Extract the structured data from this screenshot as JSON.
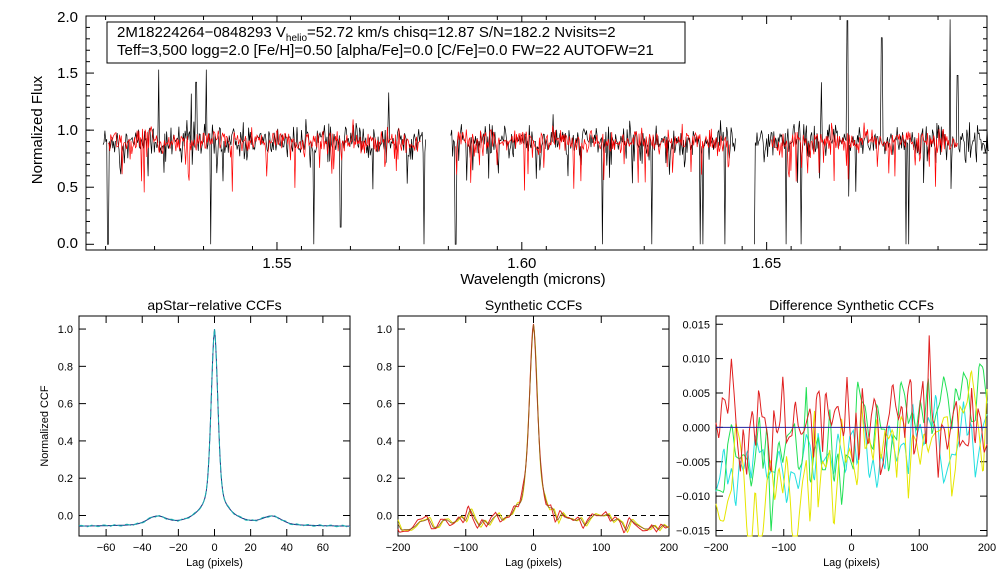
{
  "chart_data": [
    {
      "type": "line",
      "panel": "spectrum",
      "title": "",
      "xlabel": "Wavelength (microns)",
      "ylabel": "Normalized Flux",
      "xlim": [
        1.511,
        1.695
      ],
      "ylim": [
        -0.05,
        2.0
      ],
      "xticks": [
        1.55,
        1.6,
        1.65
      ],
      "xtick_labels": [
        "1.55",
        "1.60",
        "1.65"
      ],
      "yticks": [
        0.0,
        0.5,
        1.0,
        1.5,
        2.0
      ],
      "ytick_labels": [
        "0.0",
        "0.5",
        "1.0",
        "1.5",
        "2.0"
      ],
      "chip_ranges": [
        [
          1.5145,
          1.5805
        ],
        [
          1.5855,
          1.6438
        ],
        [
          1.6475,
          1.6955
        ]
      ],
      "model_ranges": [
        [
          1.5155,
          1.5795
        ],
        [
          1.5865,
          1.6425
        ],
        [
          1.651,
          1.689
        ]
      ],
      "continuum": 0.9,
      "spikes": [
        [
          1.5355,
          1.53
        ],
        [
          1.5258,
          1.53
        ],
        [
          1.5335,
          1.42
        ],
        [
          1.5325,
          1.32
        ],
        [
          1.6665,
          1.96
        ],
        [
          1.6735,
          1.81
        ],
        [
          1.6875,
          1.97
        ],
        [
          1.689,
          1.48
        ],
        [
          1.6612,
          1.42
        ],
        [
          1.5728,
          1.33
        ]
      ],
      "dips": [
        [
          1.5155,
          0.0
        ],
        [
          1.5365,
          0.0
        ],
        [
          1.5575,
          0.0
        ],
        [
          1.563,
          0.15
        ],
        [
          1.58,
          0.0
        ],
        [
          1.5865,
          0.0
        ],
        [
          1.6165,
          0.0
        ],
        [
          1.6265,
          0.0
        ],
        [
          1.6365,
          0.0
        ],
        [
          1.637,
          0.0
        ],
        [
          1.6415,
          0.0
        ],
        [
          1.6475,
          0.0
        ],
        [
          1.654,
          0.0
        ],
        [
          1.657,
          0.0
        ],
        [
          1.6785,
          0.0
        ],
        [
          1.679,
          0.0
        ]
      ],
      "series": [
        {
          "name": "observed spectrum",
          "color": "#000000"
        },
        {
          "name": "best-fit model",
          "color": "#ff0000"
        }
      ]
    },
    {
      "type": "line",
      "panel": "apstar-relative-ccf",
      "title": "apStar−relative CCFs",
      "xlabel": "Lag (pixels)",
      "ylabel": "Normalized CCF",
      "xlim": [
        -75,
        75
      ],
      "ylim": [
        -0.11,
        1.07
      ],
      "xticks": [
        -60,
        -40,
        -20,
        0,
        20,
        40,
        60
      ],
      "xtick_labels": [
        "−60",
        "−40",
        "−20",
        "0",
        "20",
        "40",
        "60"
      ],
      "yticks": [
        0.0,
        0.2,
        0.4,
        0.6,
        0.8,
        1.0
      ],
      "ytick_labels": [
        "0.0",
        "0.2",
        "0.4",
        "0.6",
        "0.8",
        "1.0"
      ],
      "series": [
        {
          "name": "visit 1",
          "color": "#1d2a80"
        },
        {
          "name": "visit 2",
          "color": "#1bb0b0"
        }
      ]
    },
    {
      "type": "line",
      "panel": "synthetic-ccf",
      "title": "Synthetic CCFs",
      "xlabel": "Lag (pixels)",
      "ylabel": "",
      "xlim": [
        -200,
        200
      ],
      "ylim": [
        -0.11,
        1.07
      ],
      "xticks": [
        -200,
        -100,
        0,
        100,
        200
      ],
      "xtick_labels": [
        "−200",
        "−100",
        "0",
        "100",
        "200"
      ],
      "yticks": [
        0.0,
        0.2,
        0.4,
        0.6,
        0.8,
        1.0
      ],
      "ytick_labels": [
        "0.0",
        "0.2",
        "0.4",
        "0.6",
        "0.8",
        "1.0"
      ],
      "series": [
        {
          "name": "combined",
          "color": "#000000"
        },
        {
          "name": "visit 1",
          "color": "#e0e000"
        },
        {
          "name": "visit 2",
          "color": "#e02020"
        },
        {
          "name": "zero line",
          "color": "#000000",
          "dashed": true
        }
      ]
    },
    {
      "type": "line",
      "panel": "difference-synthetic-ccf",
      "title": "Difference Synthetic CCFs",
      "xlabel": "Lag (pixels)",
      "ylabel": "",
      "xlim": [
        -200,
        200
      ],
      "ylim": [
        -0.0158,
        0.0162
      ],
      "xticks": [
        -200,
        -100,
        0,
        100,
        200
      ],
      "xtick_labels": [
        "−200",
        "−100",
        "0",
        "100",
        "200"
      ],
      "yticks": [
        -0.015,
        -0.01,
        -0.005,
        0.0,
        0.005,
        0.01,
        0.015
      ],
      "ytick_labels": [
        "−0.015",
        "−0.010",
        "−0.005",
        "0.000",
        "0.005",
        "0.010",
        "0.015"
      ],
      "series": [
        {
          "name": "cyan",
          "color": "#22e0e0"
        },
        {
          "name": "green",
          "color": "#22e055"
        },
        {
          "name": "yellow",
          "color": "#e6e600"
        },
        {
          "name": "red",
          "color": "#e02020"
        },
        {
          "name": "zero",
          "color": "#2020a0"
        }
      ]
    }
  ],
  "info": {
    "line1_a": "2M18224264−0848293  V",
    "line1_sub": "helio",
    "line1_b": "=52.72 km/s  chisq=12.87  S/N=182.2  Nvisits=2",
    "line2": "Teff=3,500 logg=2.0 [Fe/H]=0.50 [alpha/Fe]=0.0 [C/Fe]=0.0 FW=22 AUTOFW=21"
  }
}
